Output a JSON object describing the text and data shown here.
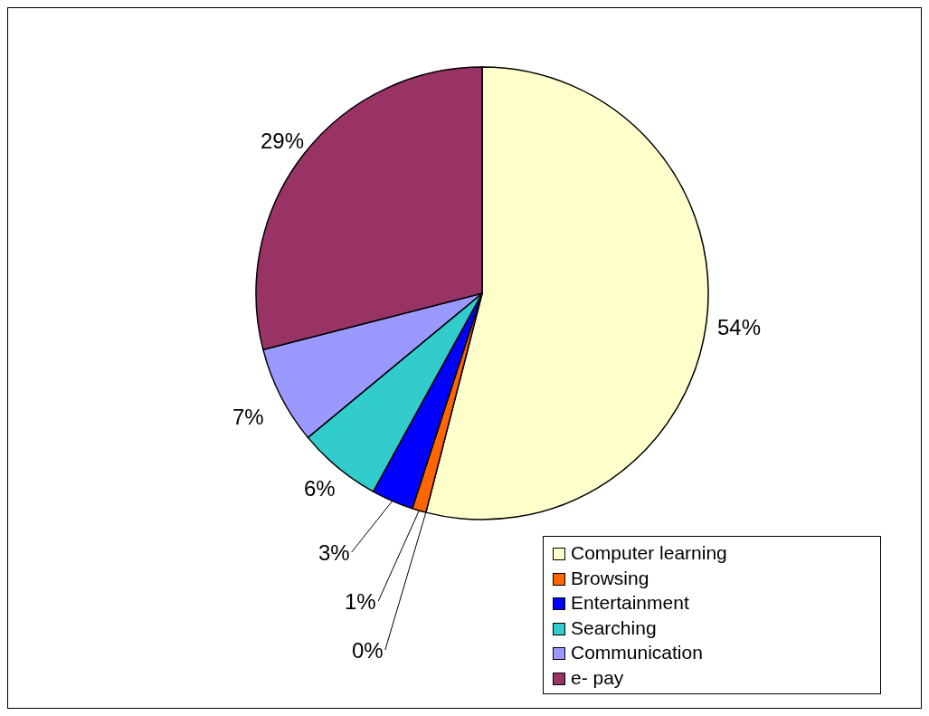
{
  "chart_data": {
    "type": "pie",
    "categories": [
      "Computer learning",
      null,
      "Browsing",
      "Entertainment",
      "Searching",
      "Communication",
      "e- pay"
    ],
    "values": [
      54,
      0,
      1,
      3,
      6,
      7,
      29
    ],
    "colors": [
      "#ffffcc",
      "#000000",
      "#ff6600",
      "#0000ff",
      "#33cccc",
      "#9999ff",
      "#993366"
    ],
    "value_labels": [
      "54%",
      "0%",
      "1%",
      "3%",
      "6%",
      "7%",
      "29%"
    ],
    "legend": "bottom right"
  }
}
